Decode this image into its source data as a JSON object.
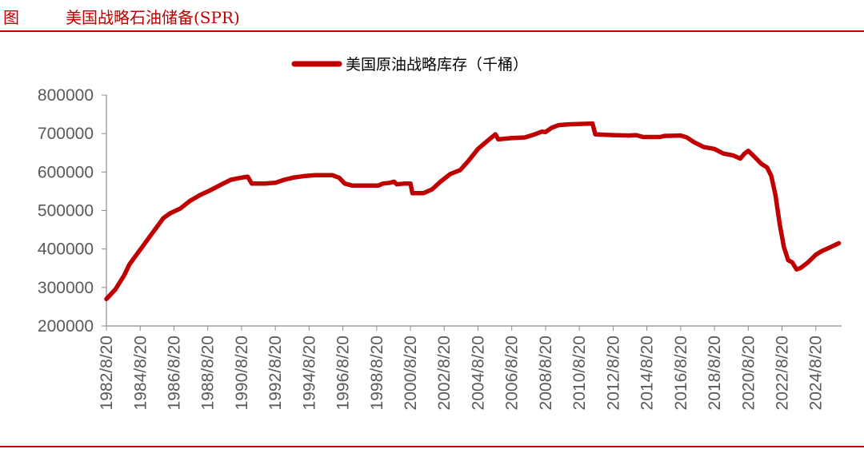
{
  "header": {
    "figure_label": "图",
    "title": "美国战略石油储备(SPR)"
  },
  "colors": {
    "accent": "#c00000",
    "axis": "#595959"
  },
  "chart_data": {
    "type": "line",
    "title": "",
    "xlabel": "",
    "ylabel": "",
    "ylim": [
      200000,
      800000
    ],
    "yticks": [
      200000,
      300000,
      400000,
      500000,
      600000,
      700000,
      800000
    ],
    "xticks": [
      "1982/8/20",
      "1984/8/20",
      "1986/8/20",
      "1988/8/20",
      "1990/8/20",
      "1992/8/20",
      "1994/8/20",
      "1996/8/20",
      "1998/8/20",
      "2000/8/20",
      "2002/8/20",
      "2004/8/20",
      "2006/8/20",
      "2008/8/20",
      "2010/8/20",
      "2012/8/20",
      "2014/8/20",
      "2016/8/20",
      "2018/8/20",
      "2020/8/20",
      "2022/8/20",
      "2024/8/20"
    ],
    "xlim": [
      "1982/8/20",
      "2026/3/1"
    ],
    "grid": false,
    "legend": "top-center",
    "series": [
      {
        "name": "美国原油战略库存（千桶）",
        "color": "#c00000",
        "points": [
          [
            "1982/8/20",
            270000
          ],
          [
            "1983/3/1",
            295000
          ],
          [
            "1983/9/1",
            330000
          ],
          [
            "1984/1/1",
            360000
          ],
          [
            "1984/6/1",
            385000
          ],
          [
            "1984/10/1",
            405000
          ],
          [
            "1985/3/1",
            430000
          ],
          [
            "1985/8/1",
            455000
          ],
          [
            "1986/1/1",
            480000
          ],
          [
            "1986/6/1",
            493000
          ],
          [
            "1987/1/1",
            505000
          ],
          [
            "1987/8/1",
            525000
          ],
          [
            "1988/3/1",
            540000
          ],
          [
            "1988/10/1",
            552000
          ],
          [
            "1989/6/1",
            567000
          ],
          [
            "1990/1/1",
            580000
          ],
          [
            "1990/8/1",
            585000
          ],
          [
            "1991/1/1",
            588000
          ],
          [
            "1991/4/1",
            570000
          ],
          [
            "1992/1/1",
            570000
          ],
          [
            "1992/8/20",
            572000
          ],
          [
            "1993/3/1",
            580000
          ],
          [
            "1993/10/1",
            586000
          ],
          [
            "1994/6/1",
            590000
          ],
          [
            "1995/1/1",
            592000
          ],
          [
            "1996/1/1",
            592000
          ],
          [
            "1996/6/1",
            585000
          ],
          [
            "1996/10/1",
            570000
          ],
          [
            "1997/3/1",
            565000
          ],
          [
            "1998/1/1",
            565000
          ],
          [
            "1998/10/1",
            565000
          ],
          [
            "1999/1/1",
            570000
          ],
          [
            "1999/6/1",
            572000
          ],
          [
            "1999/9/1",
            575000
          ],
          [
            "1999/11/1",
            568000
          ],
          [
            "2000/4/1",
            570000
          ],
          [
            "2000/8/20",
            570000
          ],
          [
            "2000/10/1",
            545000
          ],
          [
            "2001/6/1",
            545000
          ],
          [
            "2001/12/1",
            555000
          ],
          [
            "2002/6/1",
            575000
          ],
          [
            "2003/1/1",
            595000
          ],
          [
            "2003/8/1",
            605000
          ],
          [
            "2004/2/1",
            630000
          ],
          [
            "2004/8/20",
            660000
          ],
          [
            "2005/3/1",
            680000
          ],
          [
            "2005/9/1",
            698000
          ],
          [
            "2005/11/1",
            685000
          ],
          [
            "2006/8/1",
            688000
          ],
          [
            "2007/6/1",
            690000
          ],
          [
            "2008/1/1",
            698000
          ],
          [
            "2008/6/1",
            705000
          ],
          [
            "2008/8/20",
            704000
          ],
          [
            "2009/1/1",
            715000
          ],
          [
            "2009/6/1",
            722000
          ],
          [
            "2010/1/1",
            724000
          ],
          [
            "2011/6/1",
            726000
          ],
          [
            "2011/8/1",
            698000
          ],
          [
            "2012/8/20",
            696000
          ],
          [
            "2013/8/1",
            695000
          ],
          [
            "2014/1/1",
            696000
          ],
          [
            "2014/6/1",
            691000
          ],
          [
            "2015/6/1",
            691000
          ],
          [
            "2015/9/1",
            694000
          ],
          [
            "2016/8/20",
            695000
          ],
          [
            "2017/1/1",
            690000
          ],
          [
            "2017/6/1",
            678000
          ],
          [
            "2018/1/1",
            665000
          ],
          [
            "2018/8/20",
            660000
          ],
          [
            "2019/3/1",
            648000
          ],
          [
            "2019/10/1",
            643000
          ],
          [
            "2020/3/1",
            635000
          ],
          [
            "2020/6/1",
            648000
          ],
          [
            "2020/8/20",
            655000
          ],
          [
            "2021/1/1",
            640000
          ],
          [
            "2021/6/1",
            621000
          ],
          [
            "2021/10/1",
            612000
          ],
          [
            "2022/1/1",
            590000
          ],
          [
            "2022/4/1",
            540000
          ],
          [
            "2022/7/1",
            465000
          ],
          [
            "2022/10/1",
            405000
          ],
          [
            "2023/1/1",
            371000
          ],
          [
            "2023/4/1",
            365000
          ],
          [
            "2023/7/1",
            347000
          ],
          [
            "2023/10/1",
            351000
          ],
          [
            "2024/3/1",
            365000
          ],
          [
            "2024/8/20",
            385000
          ],
          [
            "2025/1/1",
            395000
          ],
          [
            "2025/6/1",
            403000
          ],
          [
            "2026/1/1",
            415000
          ]
        ]
      }
    ]
  }
}
